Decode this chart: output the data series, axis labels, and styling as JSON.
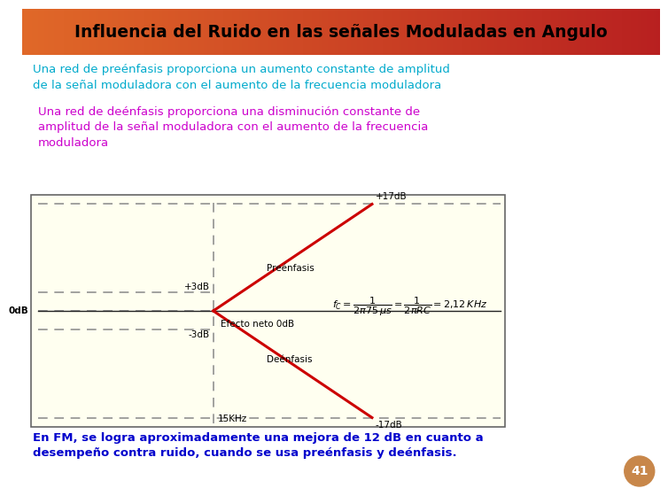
{
  "title": "Influencia del Ruido en las señales Moduladas en Angulo",
  "title_color": "#000000",
  "slide_bg": "#ffffff",
  "text1": "Una red de preénfasis proporciona un aumento constante de amplitud\nde la señal moduladora con el aumento de la frecuencia moduladora",
  "text1_color": "#00aacc",
  "text2": "Una red de deénfasis proporciona una disminución constante de\namplitud de la señal moduladora con el aumento de la frecuencia\nmoduladora",
  "text2_color": "#cc00cc",
  "bottom_text": "En FM, se logra aproximadamente una mejora de 12 dB en cuanto a\ndesempeño contra ruido, cuando se usa preénfasis y deénfasis.",
  "bottom_text_color": "#0000cc",
  "footer_num": "41",
  "footer_bg": "#c8874a",
  "diagram_bg": "#fffff0",
  "label_0dB": "0dB",
  "label_plus3": "+3dB",
  "label_minus3": "-3dB",
  "label_plus17": "+17dB",
  "label_minus17": "-17dB",
  "label_15khz": "15KHz",
  "label_preenfasis": "Preénfasis",
  "label_deenfasis": "Deénfasis",
  "label_efecto": "Efecto neto 0dB",
  "line_color_red": "#cc0000",
  "dashed_color": "#888888",
  "header_gradient_left": "#e06828",
  "header_gradient_right": "#b82020"
}
